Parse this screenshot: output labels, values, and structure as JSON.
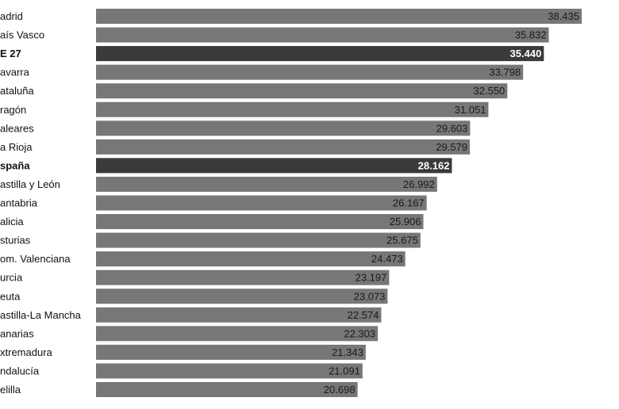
{
  "chart_data": {
    "type": "bar",
    "orientation": "horizontal",
    "categories": [
      "adrid",
      "aís Vasco",
      "E 27",
      "avarra",
      "ataluña",
      "ragón",
      "aleares",
      "a Rioja",
      "spaña",
      "astilla y León",
      "antabria",
      "alicia",
      "sturias",
      "om. Valenciana",
      "urcia",
      "euta",
      "astilla-La Mancha",
      "anarias",
      "xtremadura",
      "ndalucía",
      "elilla"
    ],
    "values": [
      38435,
      35832,
      35440,
      33798,
      32550,
      31051,
      29603,
      29579,
      28162,
      26992,
      26167,
      25906,
      25675,
      24473,
      23197,
      23073,
      22574,
      22303,
      21343,
      21091,
      20698
    ],
    "value_labels": [
      "38.435",
      "35.832",
      "35.440",
      "33.798",
      "32.550",
      "31.051",
      "29.603",
      "29.579",
      "28.162",
      "26.992",
      "26.167",
      "25.906",
      "25.675",
      "24.473",
      "23.197",
      "23.073",
      "22.574",
      "22.303",
      "21.343",
      "21.091",
      "20.698"
    ],
    "highlighted": [
      "E 27",
      "spaña"
    ],
    "xlim": [
      0,
      38435
    ],
    "grid": false,
    "legend": "none",
    "colors": {
      "bar": "#777777",
      "highlight": "#3a3a3a",
      "label_on_bar": "#1a1a1a",
      "label_on_highlight": "#ffffff",
      "category_text": "#111111"
    }
  }
}
